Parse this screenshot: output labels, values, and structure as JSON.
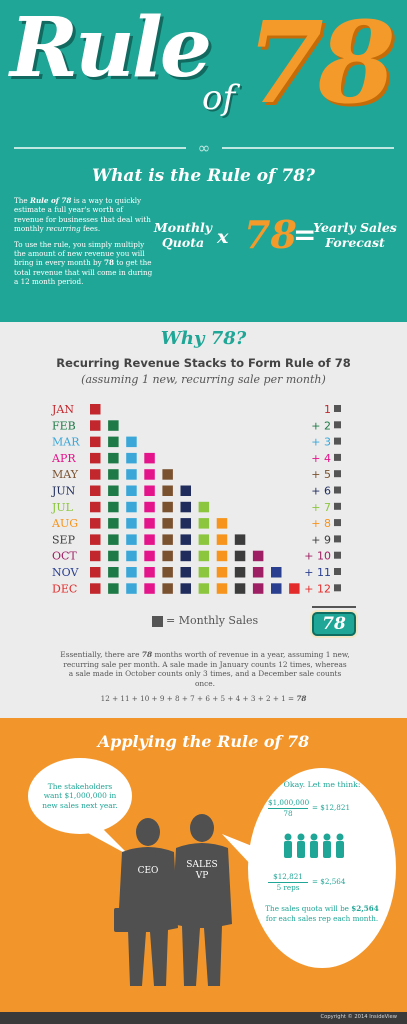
{
  "header": {
    "title_word_rule": "Rule",
    "title_word_of": "of",
    "title_number": "78",
    "what_heading": "What is the Rule of 78?",
    "intro_p1_lead": "The ",
    "intro_p1_emph": "Rule of 78",
    "intro_p1_mid": " is a way to quickly estimate a full year's worth of revenue for businesses that deal with monthly ",
    "intro_p1_emph2": "recurring",
    "intro_p1_end": " fees.",
    "intro_p2_lead": "To use the rule, you simply multiply the amount of new revenue you will bring in every month by ",
    "intro_p2_emph": "78",
    "intro_p2_end": " to get the total revenue that will come in during a 12 month period.",
    "formula": {
      "left": "Monthly Quota",
      "operator": "x",
      "number": "78",
      "equals": "=",
      "right": "Yearly Sales Forecast"
    }
  },
  "why": {
    "heading": "Why 78?",
    "chart_title": "Recurring Revenue Stacks to Form Rule of 78",
    "chart_subtitle": "(assuming 1 new, recurring sale per month)",
    "legend_label": "= Monthly Sales",
    "total": "78",
    "explain_lead": "Essentially, there are ",
    "explain_emph": "78",
    "explain_rest": " months worth of revenue in a year, assuming 1 new, recurring sale per month. A sale made in January counts 12 times, whereas a sale made in October counts only 3 times, and a December sale counts once.",
    "sum_text": "12 + 11 + 10 + 9 + 8 + 7 + 6 + 5 + 4 + 3 + 2 + 1 = ",
    "sum_result": "78"
  },
  "chart_data": {
    "type": "table",
    "title": "Recurring Revenue Stacks to Form Rule of 78",
    "subtitle": "(assuming 1 new, recurring sale per month)",
    "rows": [
      {
        "month": "JAN",
        "count_label": "1",
        "squares": 1,
        "color": "#c2272d"
      },
      {
        "month": "FEB",
        "count_label": "+ 2",
        "squares": 2,
        "color": "#1e7a46"
      },
      {
        "month": "MAR",
        "count_label": "+ 3",
        "squares": 3,
        "color": "#3aa7d8"
      },
      {
        "month": "APR",
        "count_label": "+ 4",
        "squares": 4,
        "color": "#e4148b"
      },
      {
        "month": "MAY",
        "count_label": "+ 5",
        "squares": 5,
        "color": "#7a5230"
      },
      {
        "month": "JUN",
        "count_label": "+ 6",
        "squares": 6,
        "color": "#1f2c5c"
      },
      {
        "month": "JUL",
        "count_label": "+ 7",
        "squares": 7,
        "color": "#8cc63f"
      },
      {
        "month": "AUG",
        "count_label": "+ 8",
        "squares": 8,
        "color": "#f7941d"
      },
      {
        "month": "SEP",
        "count_label": "+ 9",
        "squares": 9,
        "color": "#3c3c3c"
      },
      {
        "month": "OCT",
        "count_label": "+ 10",
        "squares": 10,
        "color": "#9e1f63"
      },
      {
        "month": "NOV",
        "count_label": "+ 11",
        "squares": 11,
        "color": "#2a3f8f"
      },
      {
        "month": "DEC",
        "count_label": "+ 12",
        "squares": 12,
        "color": "#e32b2b"
      }
    ],
    "total": 78
  },
  "apply": {
    "heading": "Applying the Rule of 78",
    "stakeholder_text": "The stakeholders want $1,000,000 in new sales next year.",
    "think_head": "Okay.  Let me think:",
    "calc1_top": "$1,000,000",
    "calc1_bottom": "78",
    "calc1_result": "= $12,821",
    "calc2_top": "$12,821",
    "calc2_bottom": "5 reps",
    "calc2_result": "= $2,564",
    "quota_lead": "The sales quota will be ",
    "quota_value": "$2,564",
    "quota_rest": " for each sales rep each month.",
    "ceo_label": "CEO",
    "vp_label": "SALES VP"
  },
  "footer": {
    "copyright": "Copyright © 2014 InsideView"
  },
  "colors": {
    "teal": "#20a696",
    "orange": "#f2962b",
    "grey_bg": "#ececec",
    "silhouette": "#505050"
  }
}
